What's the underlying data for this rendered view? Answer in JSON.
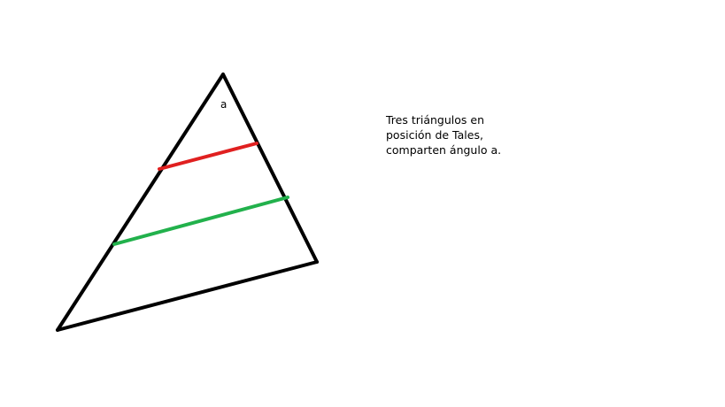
{
  "diagram": {
    "vertex_label": "a",
    "caption_lines": [
      "Tres triángulos en",
      "posición de Tales,",
      "comparten ángulo a."
    ],
    "colors": {
      "triangle": "#000000",
      "upper_parallel": "#e02020",
      "lower_parallel": "#22b14c"
    }
  }
}
